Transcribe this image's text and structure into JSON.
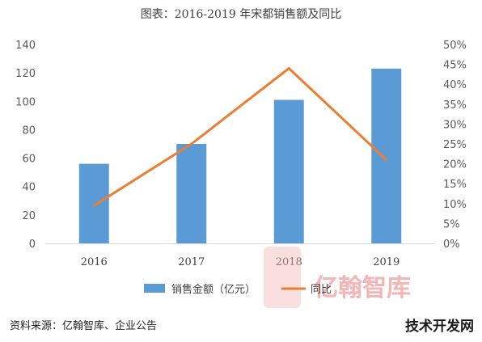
{
  "chart_data": {
    "type": "bar",
    "title": "图表：2016-2019 年宋都销售额及同比",
    "categories": [
      "2016",
      "2017",
      "2018",
      "2019"
    ],
    "series": [
      {
        "name": "销售金额（亿元）",
        "type": "bar",
        "axis": "left",
        "values": [
          56,
          70,
          101,
          123
        ],
        "color": "#5b9bd5"
      },
      {
        "name": "同比",
        "type": "line",
        "axis": "right",
        "values": [
          9.5,
          25,
          44,
          21
        ],
        "color": "#ed7d31"
      }
    ],
    "y_left": {
      "ylim": [
        0,
        140
      ],
      "ticks": [
        "0",
        "20",
        "40",
        "60",
        "80",
        "100",
        "120",
        "140"
      ]
    },
    "y_right": {
      "ylim": [
        0,
        50
      ],
      "ticks": [
        "0%",
        "5%",
        "10%",
        "15%",
        "20%",
        "25%",
        "30%",
        "35%",
        "40%",
        "45%",
        "50%"
      ]
    },
    "grid": false,
    "legend_position": "bottom",
    "source_note": "资料来源：亿翰智库、企业公告"
  },
  "watermarks": {
    "center_brand": "亿翰智库",
    "corner_brand": "技术开发网"
  }
}
